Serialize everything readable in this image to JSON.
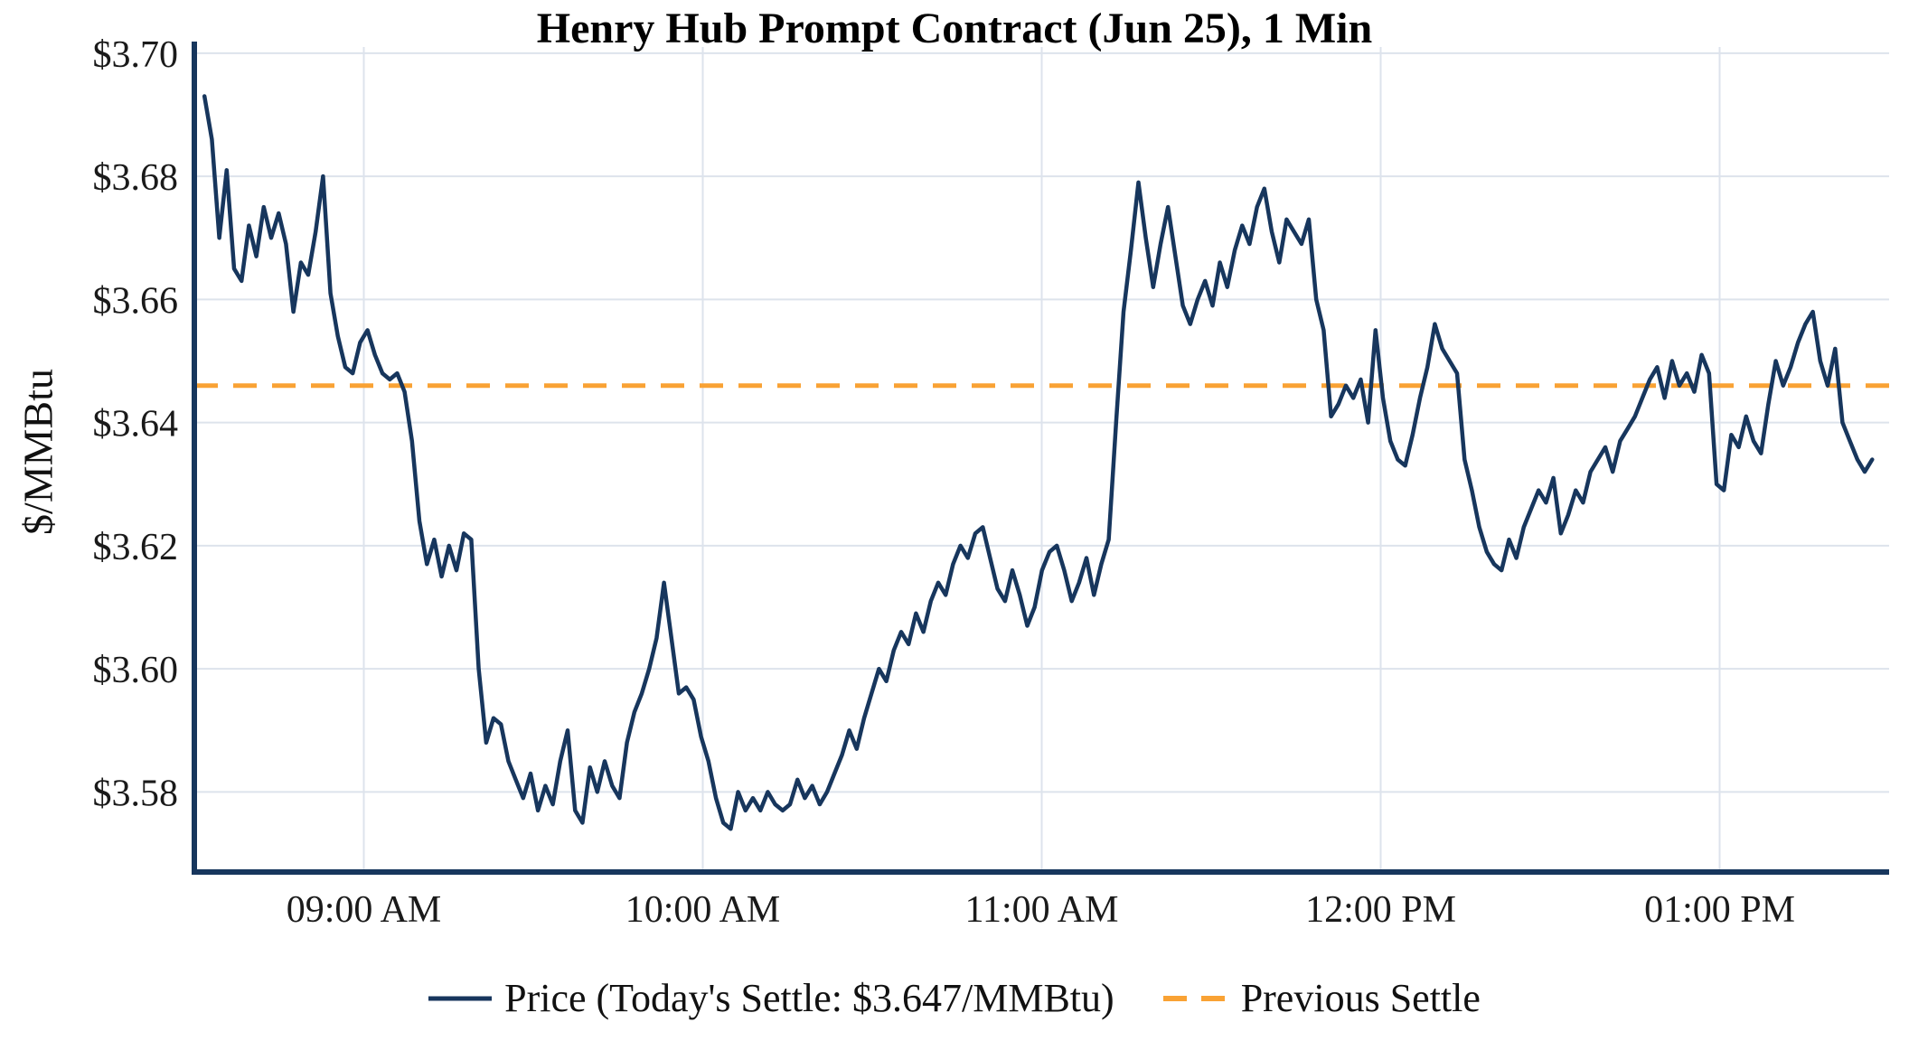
{
  "title": "Henry Hub Prompt Contract (Jun 25), 1 Min",
  "legend": {
    "price_label": "Price (Today's Settle: $3.647/MMBtu)",
    "settle_label": "Previous Settle"
  },
  "colors": {
    "price_line": "#17365d",
    "previous_settle": "#f9a234",
    "grid": "#dde3ec",
    "axis": "#17365d",
    "tick_text": "#1a1a1a"
  },
  "chart_data": {
    "type": "line",
    "title": "Henry Hub Prompt Contract (Jun 25), 1 Min",
    "xlabel": "",
    "ylabel": "$/MMBtu",
    "grid": true,
    "legend_position": "bottom",
    "today_settle": 3.647,
    "previous_settle": 3.646,
    "xlim": [
      8.5,
      13.5
    ],
    "ylim": [
      3.567,
      3.701
    ],
    "x_start": 8.53,
    "x_end": 13.45,
    "x_units": "decimal_hours",
    "xticks": [
      {
        "value": 9,
        "label": "09:00 AM"
      },
      {
        "value": 10,
        "label": "10:00 AM"
      },
      {
        "value": 11,
        "label": "11:00 AM"
      },
      {
        "value": 12,
        "label": "12:00 PM"
      },
      {
        "value": 13,
        "label": "01:00 PM"
      }
    ],
    "yticks": [
      {
        "value": 3.58,
        "label": "$3.58"
      },
      {
        "value": 3.6,
        "label": "$3.60"
      },
      {
        "value": 3.62,
        "label": "$3.62"
      },
      {
        "value": 3.64,
        "label": "$3.64"
      },
      {
        "value": 3.66,
        "label": "$3.66"
      },
      {
        "value": 3.68,
        "label": "$3.68"
      },
      {
        "value": 3.7,
        "label": "$3.70"
      }
    ],
    "series": [
      {
        "name": "Price (Today's Settle: $3.647/MMBtu)",
        "color": "#17365d",
        "style": "solid",
        "values": [
          3.693,
          3.686,
          3.67,
          3.681,
          3.665,
          3.663,
          3.672,
          3.667,
          3.675,
          3.67,
          3.674,
          3.669,
          3.658,
          3.666,
          3.664,
          3.671,
          3.68,
          3.661,
          3.654,
          3.649,
          3.648,
          3.653,
          3.655,
          3.651,
          3.648,
          3.647,
          3.648,
          3.645,
          3.637,
          3.624,
          3.617,
          3.621,
          3.615,
          3.62,
          3.616,
          3.622,
          3.621,
          3.6,
          3.588,
          3.592,
          3.591,
          3.585,
          3.582,
          3.579,
          3.583,
          3.577,
          3.581,
          3.578,
          3.585,
          3.59,
          3.577,
          3.575,
          3.584,
          3.58,
          3.585,
          3.581,
          3.579,
          3.588,
          3.593,
          3.596,
          3.6,
          3.605,
          3.614,
          3.605,
          3.596,
          3.597,
          3.595,
          3.589,
          3.585,
          3.579,
          3.575,
          3.574,
          3.58,
          3.577,
          3.579,
          3.577,
          3.58,
          3.578,
          3.577,
          3.578,
          3.582,
          3.579,
          3.581,
          3.578,
          3.58,
          3.583,
          3.586,
          3.59,
          3.587,
          3.592,
          3.596,
          3.6,
          3.598,
          3.603,
          3.606,
          3.604,
          3.609,
          3.606,
          3.611,
          3.614,
          3.612,
          3.617,
          3.62,
          3.618,
          3.622,
          3.623,
          3.618,
          3.613,
          3.611,
          3.616,
          3.612,
          3.607,
          3.61,
          3.616,
          3.619,
          3.62,
          3.616,
          3.611,
          3.614,
          3.618,
          3.612,
          3.617,
          3.621,
          3.64,
          3.658,
          3.668,
          3.679,
          3.67,
          3.662,
          3.669,
          3.675,
          3.667,
          3.659,
          3.656,
          3.66,
          3.663,
          3.659,
          3.666,
          3.662,
          3.668,
          3.672,
          3.669,
          3.675,
          3.678,
          3.671,
          3.666,
          3.673,
          3.671,
          3.669,
          3.673,
          3.66,
          3.655,
          3.641,
          3.643,
          3.646,
          3.644,
          3.647,
          3.64,
          3.655,
          3.644,
          3.637,
          3.634,
          3.633,
          3.638,
          3.644,
          3.649,
          3.656,
          3.652,
          3.65,
          3.648,
          3.634,
          3.629,
          3.623,
          3.619,
          3.617,
          3.616,
          3.621,
          3.618,
          3.623,
          3.626,
          3.629,
          3.627,
          3.631,
          3.622,
          3.625,
          3.629,
          3.627,
          3.632,
          3.634,
          3.636,
          3.632,
          3.637,
          3.639,
          3.641,
          3.644,
          3.647,
          3.649,
          3.644,
          3.65,
          3.646,
          3.648,
          3.645,
          3.651,
          3.648,
          3.63,
          3.629,
          3.638,
          3.636,
          3.641,
          3.637,
          3.635,
          3.643,
          3.65,
          3.646,
          3.649,
          3.653,
          3.656,
          3.658,
          3.65,
          3.646,
          3.652,
          3.64,
          3.637,
          3.634,
          3.632,
          3.634
        ]
      },
      {
        "name": "Previous Settle",
        "color": "#f9a234",
        "style": "dashed",
        "value": 3.646
      }
    ]
  }
}
